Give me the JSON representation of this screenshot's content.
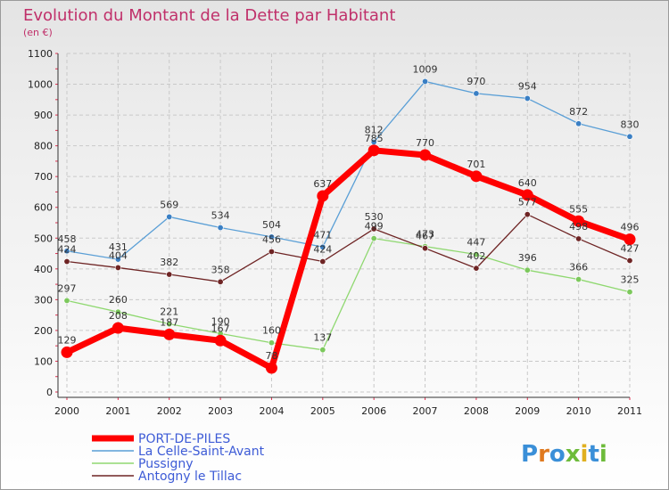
{
  "title": "Evolution du Montant de la Dette par Habitant",
  "subtitle": "(en €)",
  "logo_text": "Proxiti",
  "colors": {
    "title": "#c0306a",
    "legend_text": "#3d5bd6",
    "grid": "#c9c9c9",
    "axis": "#333333",
    "tick_mark": "#e03050"
  },
  "chart_data": {
    "type": "line",
    "title": "Evolution du Montant de la Dette par Habitant",
    "subtitle": "(en €)",
    "xlabel": "",
    "ylabel": "",
    "x": [
      "2000",
      "2001",
      "2002",
      "2003",
      "2004",
      "2005",
      "2006",
      "2007",
      "2008",
      "2009",
      "2010",
      "2011"
    ],
    "ylim": [
      0,
      1100
    ],
    "yticks": [
      "0",
      "100",
      "200",
      "300",
      "400",
      "500",
      "600",
      "700",
      "800",
      "900",
      "1000",
      "1100"
    ],
    "grid": true,
    "legend_position": "bottom-left",
    "series": [
      {
        "name": "La Celle-Saint-Avant",
        "color": "#5a9fd6",
        "marker_color": "#3a7fc4",
        "width": 1.3,
        "values": [
          458,
          431,
          569,
          534,
          504,
          471,
          812,
          1009,
          970,
          954,
          872,
          830
        ],
        "labels": [
          "458",
          "431",
          "569",
          "534",
          "504",
          "471",
          "812",
          "1009",
          "970",
          "954",
          "872",
          "830"
        ]
      },
      {
        "name": "Pussigny",
        "color": "#8fd870",
        "marker_color": "#7cc85c",
        "width": 1.3,
        "values": [
          297,
          260,
          221,
          190,
          160,
          137,
          499,
          473,
          447,
          396,
          366,
          325
        ],
        "labels": [
          "297",
          "260",
          "221",
          "190",
          "160",
          "137",
          "499",
          "473",
          "447",
          "396",
          "366",
          "325"
        ]
      },
      {
        "name": "Antogny le Tillac",
        "color": "#6e2424",
        "marker_color": "#6e2424",
        "width": 1.3,
        "values": [
          424,
          404,
          382,
          358,
          456,
          424,
          530,
          467,
          402,
          577,
          498,
          427
        ],
        "labels": [
          "424",
          "404",
          "382",
          "358",
          "456",
          "424",
          "530",
          "467",
          "402",
          "577",
          "498",
          "427"
        ]
      },
      {
        "name": "PORT-DE-PILES",
        "color": "#ff0000",
        "marker_color": "#ff0000",
        "width": 7,
        "values": [
          129,
          208,
          187,
          167,
          78,
          637,
          785,
          770,
          701,
          640,
          555,
          496
        ],
        "labels": [
          "129",
          "208",
          "187",
          "167",
          "78",
          "637",
          "785",
          "770",
          "701",
          "640",
          "555",
          "496"
        ]
      }
    ],
    "legend": [
      "PORT-DE-PILES",
      "La Celle-Saint-Avant",
      "Pussigny",
      "Antogny le Tillac"
    ]
  }
}
